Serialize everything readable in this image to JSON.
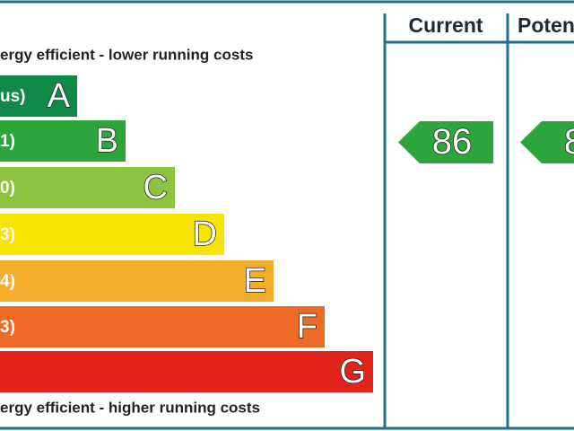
{
  "top_note": "ergy efficient - lower running costs",
  "bottom_note": "ergy efficient - higher running costs",
  "columns": [
    "Current",
    "Poten"
  ],
  "bands": [
    {
      "range": "us)",
      "letter": "A",
      "color": "#0f8a46"
    },
    {
      "range": "1)",
      "letter": "B",
      "color": "#2ca53c"
    },
    {
      "range": "0)",
      "letter": "C",
      "color": "#8cc43f"
    },
    {
      "range": "3)",
      "letter": "D",
      "color": "#f7e400"
    },
    {
      "range": "4)",
      "letter": "E",
      "color": "#f5ad2c"
    },
    {
      "range": "3)",
      "letter": "F",
      "color": "#ec6a25"
    },
    {
      "range": "",
      "letter": "G",
      "color": "#e2231a"
    }
  ],
  "ratings": [
    {
      "value": "86",
      "color": "#2ca53c"
    },
    {
      "value": "8",
      "color": "#2ca53c"
    }
  ]
}
